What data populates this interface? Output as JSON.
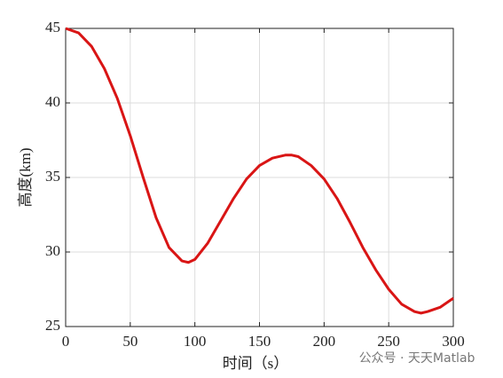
{
  "chart_data": {
    "type": "line",
    "x": [
      0,
      10,
      20,
      30,
      40,
      50,
      60,
      70,
      80,
      90,
      95,
      100,
      110,
      120,
      130,
      140,
      150,
      160,
      170,
      175,
      180,
      190,
      200,
      210,
      220,
      230,
      240,
      250,
      260,
      270,
      275,
      280,
      290,
      300
    ],
    "values": [
      45,
      44.7,
      43.8,
      42.3,
      40.3,
      37.8,
      35.0,
      32.3,
      30.3,
      29.4,
      29.3,
      29.5,
      30.6,
      32.1,
      33.6,
      34.9,
      35.8,
      36.3,
      36.5,
      36.5,
      36.4,
      35.8,
      34.9,
      33.6,
      32.0,
      30.3,
      28.8,
      27.5,
      26.5,
      26.0,
      25.9,
      26.0,
      26.3,
      26.9
    ],
    "color": "#d91515",
    "xlabel": "时间（s）",
    "ylabel": "高度(km)",
    "xlim": [
      0,
      300
    ],
    "xticks": [
      0,
      50,
      100,
      150,
      200,
      250,
      300
    ],
    "ylim": [
      25,
      45
    ],
    "yticks": [
      25,
      30,
      35,
      40,
      45
    ],
    "grid": true,
    "watermark": "公众号 · 天天Matlab"
  }
}
